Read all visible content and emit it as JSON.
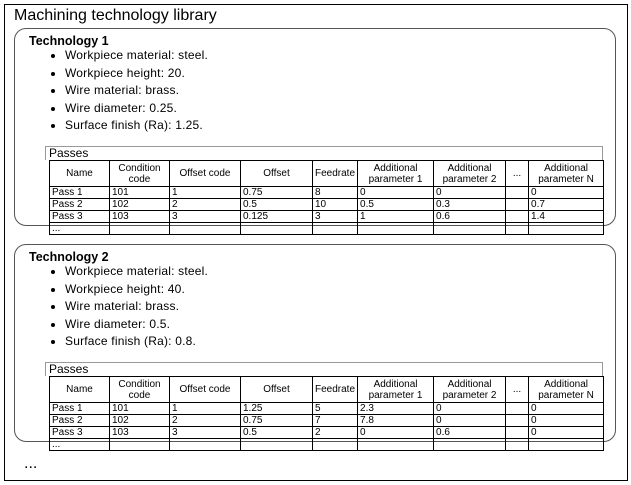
{
  "title": "Machining technology library",
  "columns": [
    "Name",
    "Condition code",
    "Offset code",
    "Offset",
    "Feedrate",
    "Additional parameter 1",
    "Additional parameter 2",
    "...",
    "Additional parameter N"
  ],
  "passes_label": "Passes",
  "technologies": [
    {
      "name": "Technology 1",
      "properties": [
        "Workpiece material: steel.",
        "Workpiece height: 20.",
        "Wire material: brass.",
        "Wire diameter: 0.25.",
        "Surface finish (Ra): 1.25."
      ],
      "rows": [
        [
          "Pass 1",
          "101",
          "1",
          "0.75",
          "8",
          "0",
          "0",
          "",
          "0"
        ],
        [
          "Pass 2",
          "102",
          "2",
          "0.5",
          "10",
          "0.5",
          "0.3",
          "",
          "0.7"
        ],
        [
          "Pass 3",
          "103",
          "3",
          "0.125",
          "3",
          "1",
          "0.6",
          "",
          "1.4"
        ],
        [
          "...",
          "",
          "",
          "",
          "",
          "",
          "",
          "",
          ""
        ]
      ]
    },
    {
      "name": "Technology 2",
      "properties": [
        "Workpiece material: steel.",
        "Workpiece height: 40.",
        "Wire material: brass.",
        "Wire diameter: 0.5.",
        "Surface finish (Ra): 0.8."
      ],
      "rows": [
        [
          "Pass 1",
          "101",
          "1",
          "1.25",
          "5",
          "2.3",
          "0",
          "",
          "0"
        ],
        [
          "Pass 2",
          "102",
          "2",
          "0.75",
          "7",
          "7.8",
          "0",
          "",
          "0"
        ],
        [
          "Pass 3",
          "103",
          "3",
          "0.5",
          "2",
          "0",
          "0.6",
          "",
          "0"
        ],
        [
          "...",
          "",
          "",
          "",
          "",
          "",
          "",
          "",
          ""
        ]
      ]
    }
  ],
  "more": "..."
}
